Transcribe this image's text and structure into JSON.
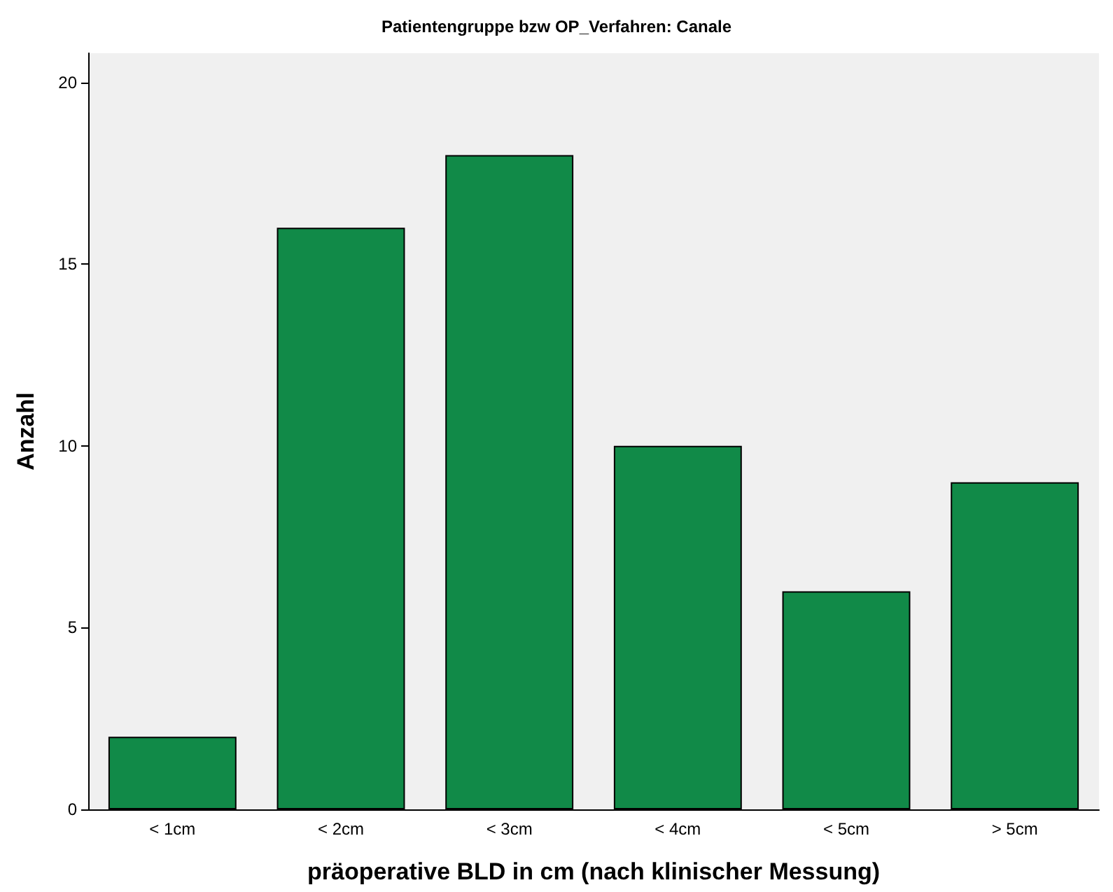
{
  "chart_data": {
    "type": "bar",
    "title": "Patientengruppe bzw OP_Verfahren: Canale",
    "xlabel": "präoperative BLD in cm (nach klinischer Messung)",
    "ylabel": "Anzahl",
    "categories": [
      "< 1cm",
      "< 2cm",
      "< 3cm",
      "< 4cm",
      "< 5cm",
      "> 5cm"
    ],
    "values": [
      2,
      16,
      18,
      10,
      6,
      9
    ],
    "color": "#118a48",
    "ylim": [
      0,
      20.8
    ],
    "yticks": [
      0,
      5,
      10,
      15,
      20
    ],
    "grid": false
  }
}
